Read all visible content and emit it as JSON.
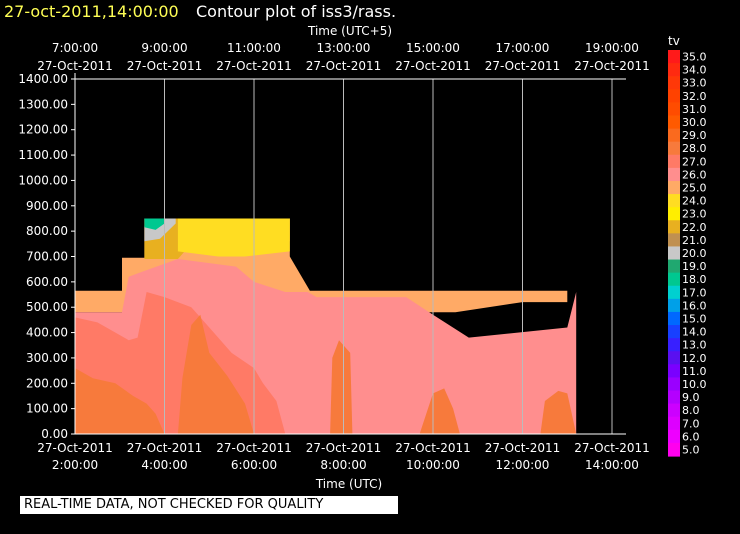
{
  "header": {
    "date_label": "27-oct-2011,14:00:00",
    "title": "Contour plot of iss3/rass."
  },
  "footer": {
    "quality_note": "REAL-TIME DATA, NOT CHECKED FOR QUALITY"
  },
  "chart_data": {
    "type": "heatmap",
    "top_axis_label": "Time (UTC+5)",
    "bottom_axis_label": "Time (UTC)",
    "colorbar_label": "tv",
    "grid": "vertical lines at each top-axis tick",
    "x_utc_hours_range": [
      2,
      14
    ],
    "ylim": [
      0,
      1400
    ],
    "y_ticks": [
      "0.00",
      "100.00",
      "200.00",
      "300.00",
      "400.00",
      "500.00",
      "600.00",
      "700.00",
      "800.00",
      "900.00",
      "1000.00",
      "1100.00",
      "1200.00",
      "1300.00",
      "1400.00"
    ],
    "x_bottom_ticks": [
      {
        "hour": 2,
        "date": "27-Oct-2011",
        "time": "2:00:00"
      },
      {
        "hour": 4,
        "date": "27-Oct-2011",
        "time": "4:00:00"
      },
      {
        "hour": 6,
        "date": "27-Oct-2011",
        "time": "6:00:00"
      },
      {
        "hour": 8,
        "date": "27-Oct-2011",
        "time": "8:00:00"
      },
      {
        "hour": 10,
        "date": "27-Oct-2011",
        "time": "10:00:00"
      },
      {
        "hour": 12,
        "date": "27-Oct-2011",
        "time": "12:00:00"
      },
      {
        "hour": 14,
        "date": "27-Oct-2011",
        "time": "14:00:00"
      }
    ],
    "x_top_ticks": [
      {
        "hour": 2,
        "time": "7:00:00",
        "date": "27-Oct-2011"
      },
      {
        "hour": 4,
        "time": "9:00:00",
        "date": "27-Oct-2011"
      },
      {
        "hour": 6,
        "time": "11:00:00",
        "date": "27-Oct-2011"
      },
      {
        "hour": 8,
        "time": "13:00:00",
        "date": "27-Oct-2011"
      },
      {
        "hour": 10,
        "time": "15:00:00",
        "date": "27-Oct-2011"
      },
      {
        "hour": 12,
        "time": "17:00:00",
        "date": "27-Oct-2011"
      },
      {
        "hour": 14,
        "time": "19:00:00",
        "date": "27-Oct-2011"
      }
    ],
    "colorbar": [
      {
        "value": "35.0",
        "color": "#ff1a1a"
      },
      {
        "value": "34.0",
        "color": "#ff2a10"
      },
      {
        "value": "33.0",
        "color": "#ff3808"
      },
      {
        "value": "32.0",
        "color": "#ff4200"
      },
      {
        "value": "31.0",
        "color": "#ff4c00"
      },
      {
        "value": "30.0",
        "color": "#ff5a00"
      },
      {
        "value": "29.0",
        "color": "#fa6a1e"
      },
      {
        "value": "28.0",
        "color": "#f77a3c"
      },
      {
        "value": "27.0",
        "color": "#ff7a66"
      },
      {
        "value": "26.0",
        "color": "#ff8e8e"
      },
      {
        "value": "25.0",
        "color": "#ffaa66"
      },
      {
        "value": "24.0",
        "color": "#ffdd22"
      },
      {
        "value": "23.0",
        "color": "#ffee00"
      },
      {
        "value": "22.0",
        "color": "#e8b020"
      },
      {
        "value": "21.0",
        "color": "#c09050"
      },
      {
        "value": "20.0",
        "color": "#c8c8c8"
      },
      {
        "value": "19.0",
        "color": "#20a870"
      },
      {
        "value": "18.0",
        "color": "#00c890"
      },
      {
        "value": "17.0",
        "color": "#00d0d0"
      },
      {
        "value": "16.0",
        "color": "#00a0e8"
      },
      {
        "value": "15.0",
        "color": "#0068ff"
      },
      {
        "value": "14.0",
        "color": "#1840ff"
      },
      {
        "value": "13.0",
        "color": "#3820ff"
      },
      {
        "value": "12.0",
        "color": "#5a10f0"
      },
      {
        "value": "11.0",
        "color": "#7a00ff"
      },
      {
        "value": "10.0",
        "color": "#9a00ff"
      },
      {
        "value": "9.0",
        "color": "#b400ff"
      },
      {
        "value": "8.0",
        "color": "#cc00ff"
      },
      {
        "value": "7.0",
        "color": "#dd00ff"
      },
      {
        "value": "6.0",
        "color": "#ee00ff"
      },
      {
        "value": "5.0",
        "color": "#ff00ee"
      }
    ],
    "regions": [
      {
        "tv": 25,
        "points": [
          [
            2,
            480
          ],
          [
            2,
            565
          ],
          [
            3.05,
            565
          ],
          [
            3.05,
            695
          ],
          [
            3.55,
            695
          ],
          [
            3.55,
            850
          ],
          [
            6.8,
            850
          ],
          [
            6.8,
            700
          ],
          [
            7.25,
            565
          ],
          [
            13.0,
            565
          ],
          [
            13.0,
            520
          ],
          [
            12.0,
            520
          ],
          [
            10.5,
            480
          ]
        ]
      },
      {
        "tv": 22,
        "points": [
          [
            3.55,
            850
          ],
          [
            3.55,
            690
          ],
          [
            4.3,
            690
          ],
          [
            4.6,
            750
          ],
          [
            5.2,
            750
          ],
          [
            6.8,
            760
          ],
          [
            6.8,
            850
          ]
        ]
      },
      {
        "tv": 24,
        "points": [
          [
            4.3,
            850
          ],
          [
            4.3,
            720
          ],
          [
            5.2,
            700
          ],
          [
            5.8,
            700
          ],
          [
            6.8,
            720
          ],
          [
            6.8,
            850
          ]
        ]
      },
      {
        "tv": 20,
        "points": [
          [
            3.55,
            820
          ],
          [
            3.55,
            760
          ],
          [
            3.9,
            770
          ],
          [
            4.25,
            830
          ],
          [
            4.25,
            850
          ],
          [
            3.9,
            850
          ]
        ]
      },
      {
        "tv": 18,
        "points": [
          [
            3.55,
            850
          ],
          [
            3.55,
            815
          ],
          [
            3.8,
            805
          ],
          [
            4.0,
            830
          ],
          [
            4.0,
            850
          ]
        ]
      },
      {
        "tv": 26,
        "points": [
          [
            2,
            0
          ],
          [
            2,
            480
          ],
          [
            3.05,
            480
          ],
          [
            3.2,
            620
          ],
          [
            3.5,
            640
          ],
          [
            4.3,
            690
          ],
          [
            5.6,
            660
          ],
          [
            6.0,
            600
          ],
          [
            6.7,
            560
          ],
          [
            7.2,
            560
          ],
          [
            7.4,
            540
          ],
          [
            9.4,
            540
          ],
          [
            10.0,
            470
          ],
          [
            10.8,
            380
          ],
          [
            13.0,
            420
          ],
          [
            13.2,
            560
          ],
          [
            13.2,
            0
          ]
        ]
      },
      {
        "tv": 27,
        "points": [
          [
            2,
            0
          ],
          [
            2,
            460
          ],
          [
            2.5,
            440
          ],
          [
            3.2,
            370
          ],
          [
            3.4,
            380
          ],
          [
            3.6,
            560
          ],
          [
            4.0,
            540
          ],
          [
            4.6,
            500
          ],
          [
            5.0,
            420
          ],
          [
            5.5,
            320
          ],
          [
            6.0,
            260
          ],
          [
            6.2,
            200
          ],
          [
            6.5,
            130
          ],
          [
            6.7,
            0
          ]
        ]
      },
      {
        "tv": 28,
        "points": [
          [
            2,
            0
          ],
          [
            2,
            260
          ],
          [
            2.4,
            220
          ],
          [
            2.9,
            200
          ],
          [
            3.3,
            150
          ],
          [
            3.6,
            120
          ],
          [
            3.8,
            80
          ],
          [
            4.0,
            0
          ]
        ]
      },
      {
        "tv": 28,
        "points": [
          [
            4.3,
            0
          ],
          [
            4.4,
            220
          ],
          [
            4.6,
            430
          ],
          [
            4.8,
            470
          ],
          [
            5.0,
            320
          ],
          [
            5.4,
            230
          ],
          [
            5.8,
            120
          ],
          [
            6.0,
            0
          ]
        ]
      },
      {
        "tv": 28,
        "points": [
          [
            7.7,
            0
          ],
          [
            7.75,
            300
          ],
          [
            7.9,
            370
          ],
          [
            8.15,
            320
          ],
          [
            8.2,
            0
          ]
        ]
      },
      {
        "tv": 28,
        "points": [
          [
            9.7,
            0
          ],
          [
            10.0,
            160
          ],
          [
            10.25,
            180
          ],
          [
            10.45,
            100
          ],
          [
            10.6,
            0
          ]
        ]
      },
      {
        "tv": 28,
        "points": [
          [
            12.4,
            0
          ],
          [
            12.5,
            130
          ],
          [
            12.8,
            170
          ],
          [
            13.0,
            160
          ],
          [
            13.2,
            0
          ]
        ]
      }
    ]
  }
}
